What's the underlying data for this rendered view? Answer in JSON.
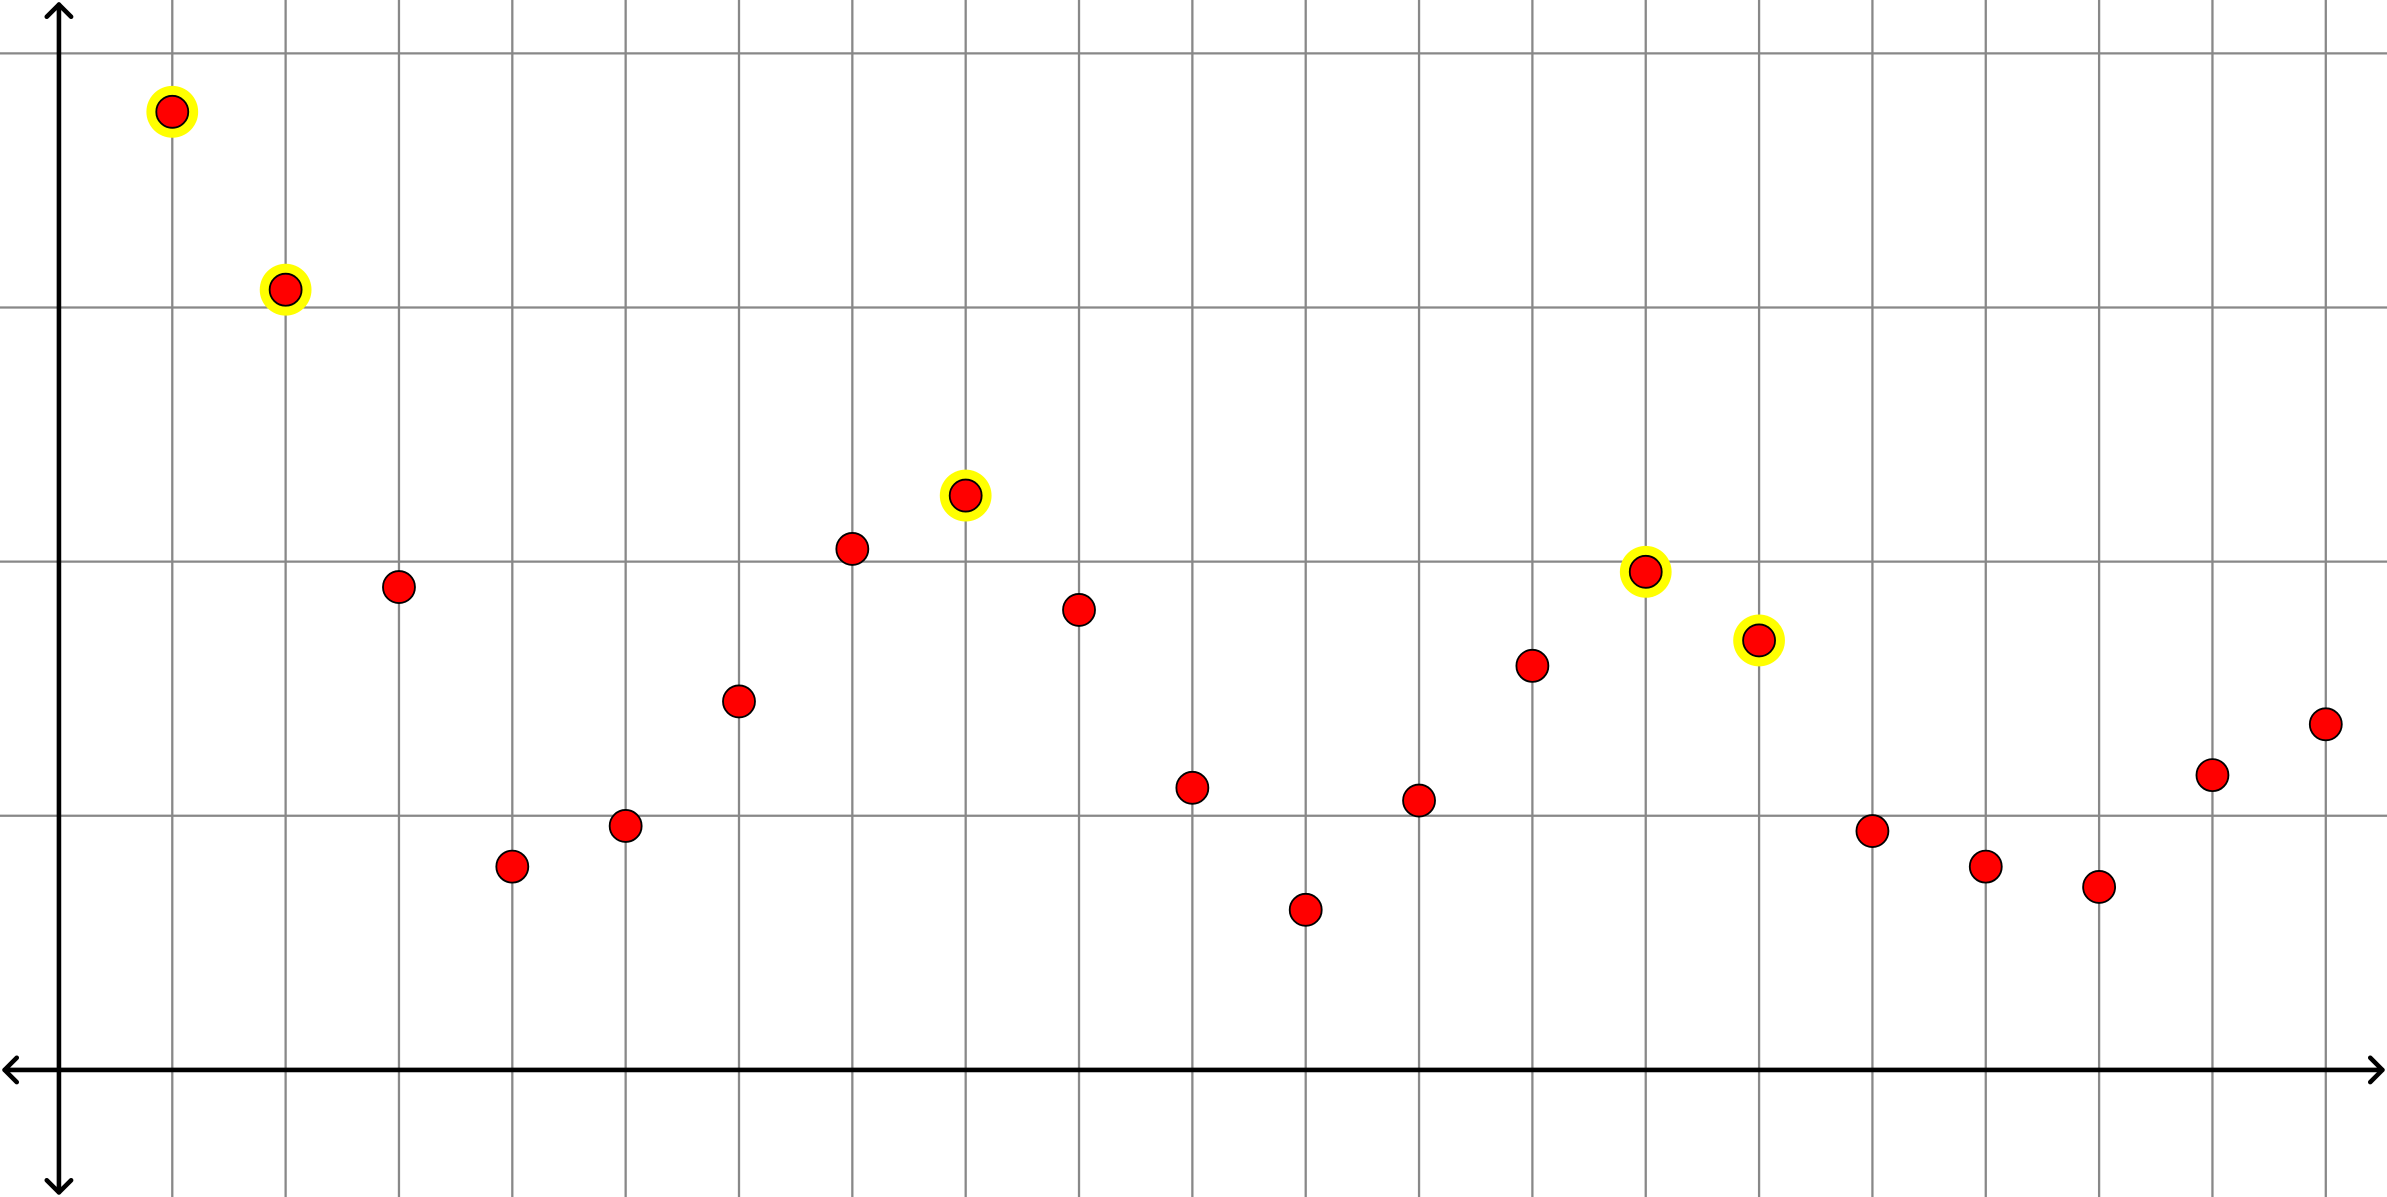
{
  "chart_data": {
    "type": "scatter",
    "x": [
      1,
      2,
      3,
      4,
      5,
      6,
      7,
      8,
      9,
      10,
      11,
      12,
      13,
      14,
      15,
      16,
      17,
      18,
      19,
      20
    ],
    "series": [
      {
        "color": "#ff0000",
        "values": [
          3.77,
          3.07,
          1.9,
          0.8,
          0.96,
          1.45,
          2.05,
          2.26,
          1.81,
          1.11,
          0.63,
          1.06,
          1.59,
          1.96,
          1.69,
          0.94,
          0.8,
          0.72,
          1.16,
          1.36
        ],
        "highlight": [
          true,
          true,
          false,
          false,
          false,
          false,
          false,
          true,
          false,
          false,
          false,
          false,
          false,
          true,
          true,
          false,
          false,
          false,
          false,
          false
        ],
        "highlight_color": "#ffff00"
      }
    ],
    "xlim": [
      -0.52,
      20.54
    ],
    "ylim": [
      -0.5,
      4.21
    ],
    "xticks": [
      1,
      2,
      3,
      4,
      5,
      6,
      7,
      8,
      9,
      10,
      11,
      12,
      13,
      14,
      15,
      16,
      17,
      18,
      19,
      20
    ],
    "yticks": [
      1,
      2,
      3,
      4
    ],
    "grid": true
  }
}
